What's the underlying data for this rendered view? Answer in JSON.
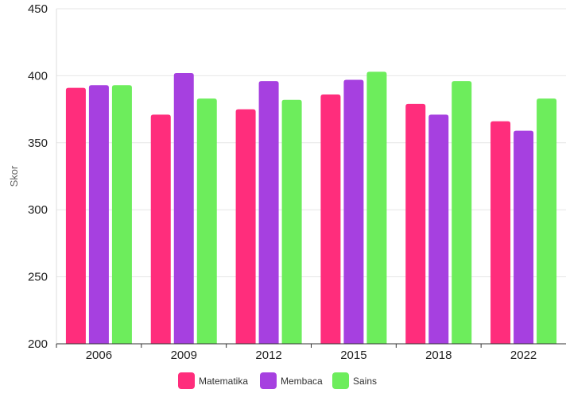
{
  "chart_data": {
    "type": "bar",
    "title": "",
    "xlabel": "",
    "ylabel": "Skor",
    "ylim": [
      200,
      450
    ],
    "yticks": [
      "200",
      "250",
      "300",
      "350",
      "400",
      "450"
    ],
    "categories": [
      "2006",
      "2009",
      "2012",
      "2015",
      "2018",
      "2022"
    ],
    "series": [
      {
        "name": "Matematika",
        "color": "#ff2d7c",
        "values": [
          391,
          371,
          375,
          386,
          379,
          366
        ]
      },
      {
        "name": "Membaca",
        "color": "#a640e0",
        "values": [
          393,
          402,
          396,
          397,
          371,
          359
        ]
      },
      {
        "name": "Sains",
        "color": "#6ded5c",
        "values": [
          393,
          383,
          382,
          403,
          396,
          383
        ]
      }
    ],
    "grid": true,
    "legend_position": "bottom-center"
  }
}
